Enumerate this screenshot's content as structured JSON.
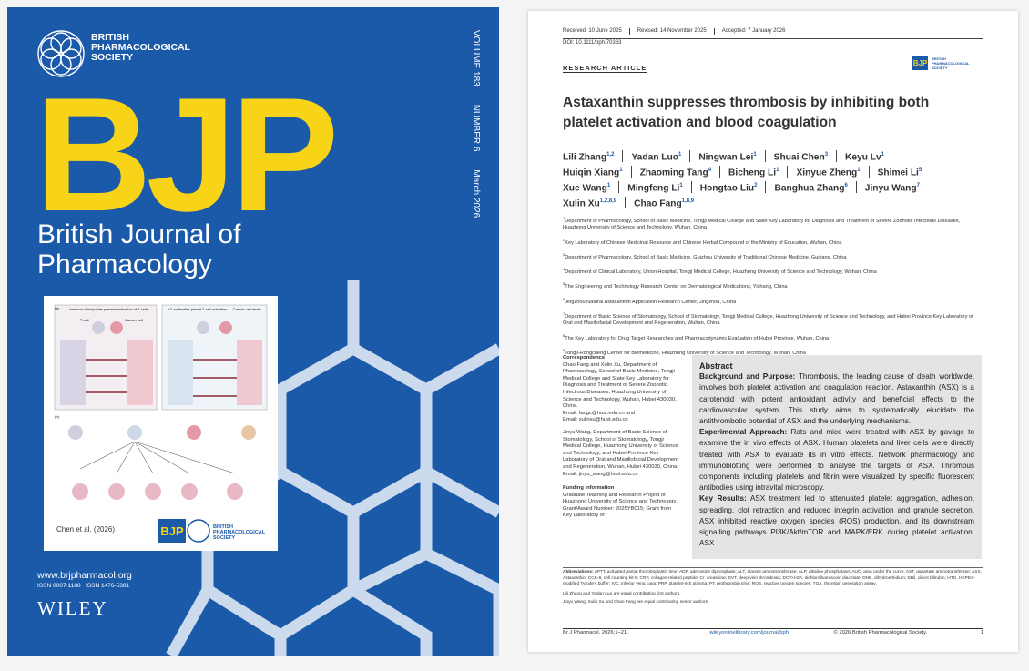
{
  "cover": {
    "society": "BRITISH PHARMACOLOGICAL SOCIETY",
    "acronym": "BJP",
    "journal": "British Journal of Pharmacology",
    "volume": "VOLUME 183",
    "number": "NUMBER 6",
    "date": "March 2026",
    "figure": {
      "panel_a": "(a)",
      "heading_left": "Immune checkpoints prevent activation of T-cells",
      "heading_right": "ICI antibodies permit T-cell activation → Cancer cell death",
      "t_cell": "T cell",
      "cancer_cell": "Cancer cell",
      "panel_b": "(b)",
      "credit": "Chen et al. (2026)"
    },
    "website": "www.brjpharmacol.org",
    "issn": "ISSN 0007-1188   ISSN 1476-5381",
    "publisher": "WILEY"
  },
  "article": {
    "received": "Received: 10 June 2025",
    "revised": "Revised: 14 November 2025",
    "accepted": "Accepted: 7 January 2026",
    "doi": "DOI: 10.1111/bph.70363",
    "section": "RESEARCH ARTICLE",
    "title": "Astaxanthin suppresses thrombosis by inhibiting both platelet activation and blood coagulation",
    "authors": [
      {
        "name": "Lili Zhang",
        "sup": "1,2"
      },
      {
        "name": "Yadan Luo",
        "sup": "1"
      },
      {
        "name": "Ningwan Lei",
        "sup": "1"
      },
      {
        "name": "Shuai Chen",
        "sup": "3"
      },
      {
        "name": "Keyu Lv",
        "sup": "1"
      },
      {
        "name": "Huiqin Xiang",
        "sup": "1"
      },
      {
        "name": "Zhaoming Tang",
        "sup": "4"
      },
      {
        "name": "Bicheng Li",
        "sup": "1"
      },
      {
        "name": "Xinyue Zheng",
        "sup": "1"
      },
      {
        "name": "Shimei Li",
        "sup": "5"
      },
      {
        "name": "Xue Wang",
        "sup": "1"
      },
      {
        "name": "Mingfeng Li",
        "sup": "1"
      },
      {
        "name": "Hongtao Liu",
        "sup": "2"
      },
      {
        "name": "Banghua Zhang",
        "sup": "6"
      },
      {
        "name": "Jinyu Wang",
        "sup": "7"
      },
      {
        "name": "Xulin Xu",
        "sup": "1,2,8,9"
      },
      {
        "name": "Chao Fang",
        "sup": "1,8,9"
      }
    ],
    "affiliations": [
      {
        "num": "1",
        "text": "Department of Pharmacology, School of Basic Medicine, Tongji Medical College and State Key Laboratory for Diagnosis and Treatment of Severe Zoonotic Infectious Diseases, Huazhong University of Science and Technology, Wuhan, China"
      },
      {
        "num": "2",
        "text": "Key Laboratory of Chinese Medicinal Resource and Chinese Herbal Compound of the Ministry of Education, Wuhan, China"
      },
      {
        "num": "3",
        "text": "Department of Pharmacology, School of Basic Medicine, Guizhou University of Traditional Chinese Medicine, Guiyang, China"
      },
      {
        "num": "4",
        "text": "Department of Clinical Laboratory, Union Hospital, Tongji Medical College, Huazhong University of Science and Technology, Wuhan, China"
      },
      {
        "num": "5",
        "text": "The Engineering and Technology Research Center on Dermatological Medications, Yichang, China"
      },
      {
        "num": "6",
        "text": "Jingzhou Natural Astaxanthin Application Research Center, Jingzhou, China"
      },
      {
        "num": "7",
        "text": "Department of Basic Science of Stomatology, School of Stomatology, Tongji Medical College, Huazhong University of Science and Technology, and Hubei Province Key Laboratory of Oral and Maxillofacial Development and Regeneration, Wuhan, China"
      },
      {
        "num": "8",
        "text": "The Key Laboratory for Drug Target Researches and Pharmacodynamic Evaluation of Hubei Province, Wuhan, China"
      },
      {
        "num": "9",
        "text": "Tongji-Rongcheng Center for Biomedicine, Huazhong University of Science and Technology, Wuhan, China"
      }
    ],
    "correspondence": {
      "heading": "Correspondence",
      "blocks": [
        "Chao Fang and Xulin Xu, Department of Pharmacology, School of Basic Medicine, Tongji Medical College and State Key Laboratory for Diagnosis and Treatment of Severe Zoonotic Infectious Diseases, Huazhong University of Science and Technology, Wuhan, Hubei 430030, China.",
        "Email: fangc@hust.edu.cn and",
        "Email: xulinxu@hust.edu.cn",
        "Jinyu Wang, Department of Basic Science of Stomatology, School of Stomatology, Tongji Medical College, Huazhong University of Science and Technology, and Hubei Province Key Laboratory of Oral and Maxillofacial Development and Regeneration, Wuhan, Hubei 430030, China.",
        "Email: jinyu_wang@hust.edu.cn"
      ]
    },
    "funding": {
      "heading": "Funding information",
      "text": "Graduate Teaching and Research Project of Huazhong University of Science and Technology, Grant/Award Number: 2025YB015; Grant from Key Laboratory of"
    },
    "abstract": {
      "heading": "Abstract",
      "sections": [
        {
          "label": "Background and Purpose:",
          "text": "Thrombosis, the leading cause of death worldwide, involves both platelet activation and coagulation reaction. Astaxanthin (ASX) is a carotenoid with potent antioxidant activity and beneficial effects to the cardiovascular system. This study aims to systematically elucidate the antithrombotic potential of ASX and the underlying mechanisms."
        },
        {
          "label": "Experimental Approach:",
          "text": "Rats and mice were treated with ASX by gavage to examine the in vivo effects of ASX. Human platelets and liver cells were directly treated with ASX to evaluate its in vitro effects. Network pharmacology and immunoblotting were performed to analyse the targets of ASX. Thrombus components including platelets and fibrin were visualized by specific fluorescent antibodies using intravital microscopy."
        },
        {
          "label": "Key Results:",
          "text": "ASX treatment led to attenuated platelet aggregation, adhesion, spreading, clot retraction and reduced integrin activation and granule secretion. ASX inhibited reactive oxygen species (ROS) production, and its downstream signalling pathways PI3K/Akt/mTOR and MAPK/ERK during platelet activation. ASX"
        }
      ]
    },
    "abbreviations": {
      "label": "Abbreviations:",
      "text": "aPTT, activated partial thromboplastin time; ADP, adenosine diphosphate; ALT, alanine aminotransferase; ALP, alkaline phosphatase; AUC, area under the curve; AST, aspartate aminotransferase; ASX, Astaxanthin; CCK-8, cell counting kit-8; CRP, collagen-related peptide; Cr, creatinine; DVT, deep vein thrombosis; DCFH-DA, dichlorofluorescein diacetate; DHE, dihydroethidium; DBil, direct bilirubin; HTG, HEPES-modified Tyrode's buffer; IVC, inferior vena cava; PRP, platelet-rich plasma; PT, prothrombin time; ROS, reactive oxygen species; TGA, thrombin generation assay."
    },
    "notes": [
      "Lili Zhang and Yadan Luo are equal contributing first authors.",
      "Jinyu Wang, Xulin Xu and Chao Fang are equal contributing senior authors."
    ],
    "footer": {
      "citation": "Br J Pharmacol. 2026;1–21.",
      "url": "wileyonlinelibrary.com/journal/bph",
      "copyright": "© 2026 British Pharmacological Society.",
      "page": "1"
    }
  }
}
